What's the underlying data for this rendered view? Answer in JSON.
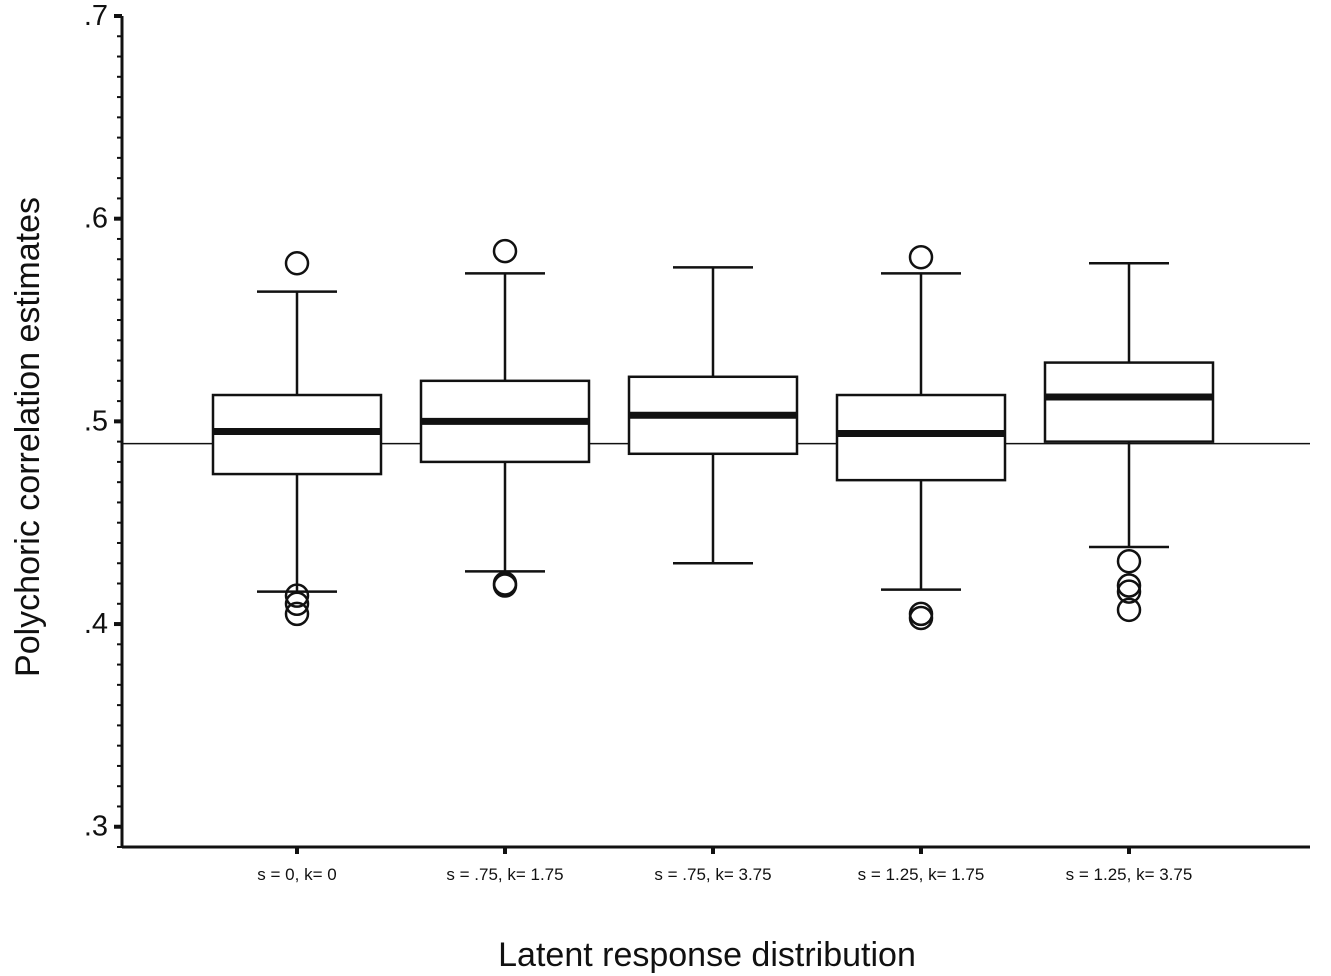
{
  "chart_data": {
    "type": "boxplot",
    "xlabel": "Latent response distribution",
    "ylabel": "Polychoric correlation estimates",
    "ylim": [
      0.29,
      0.7
    ],
    "yticks": [
      {
        "value": 0.3,
        "label": ".3"
      },
      {
        "value": 0.4,
        "label": ".4"
      },
      {
        "value": 0.5,
        "label": ".5"
      },
      {
        "value": 0.6,
        "label": ".6"
      },
      {
        "value": 0.7,
        "label": ".7"
      }
    ],
    "reference_line": 0.489,
    "grid": false,
    "categories": [
      "s = 0, k= 0",
      "s = .75, k= 1.75",
      "s = .75, k= 3.75",
      "s = 1.25, k= 1.75",
      "s = 1.25, k= 3.75"
    ],
    "boxes": [
      {
        "whisker_low": 0.416,
        "q1": 0.474,
        "median": 0.495,
        "q3": 0.513,
        "whisker_high": 0.564,
        "outliers": [
          0.578,
          0.414,
          0.41,
          0.405
        ]
      },
      {
        "whisker_low": 0.426,
        "q1": 0.48,
        "median": 0.5,
        "q3": 0.52,
        "whisker_high": 0.573,
        "outliers": [
          0.584,
          0.42,
          0.419
        ]
      },
      {
        "whisker_low": 0.43,
        "q1": 0.484,
        "median": 0.503,
        "q3": 0.522,
        "whisker_high": 0.576,
        "outliers": []
      },
      {
        "whisker_low": 0.417,
        "q1": 0.471,
        "median": 0.494,
        "q3": 0.513,
        "whisker_high": 0.573,
        "outliers": [
          0.581,
          0.405,
          0.403
        ]
      },
      {
        "whisker_low": 0.438,
        "q1": 0.49,
        "median": 0.512,
        "q3": 0.529,
        "whisker_high": 0.578,
        "outliers": [
          0.431,
          0.419,
          0.416,
          0.407
        ]
      }
    ]
  }
}
